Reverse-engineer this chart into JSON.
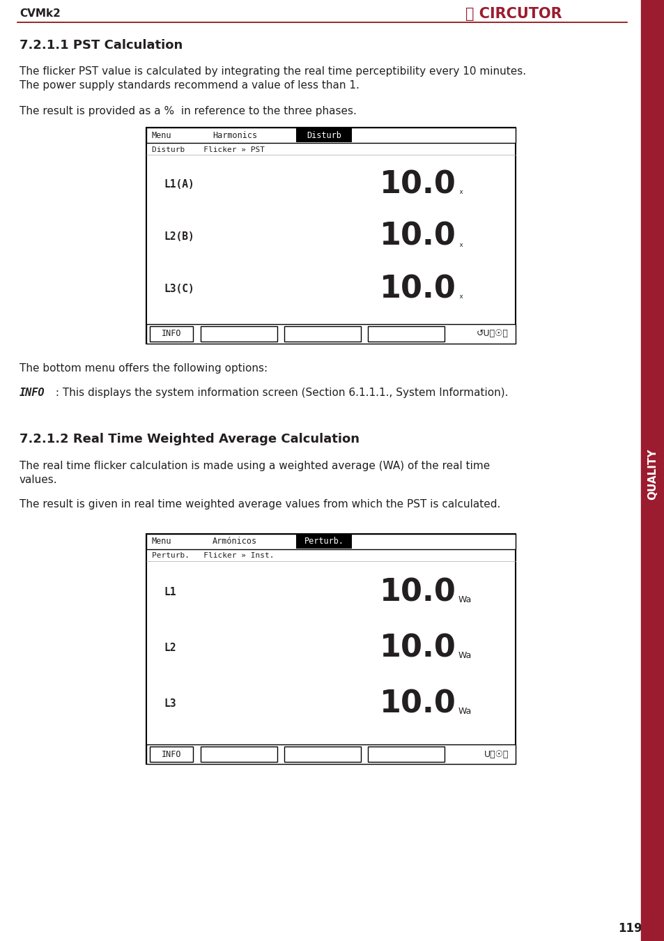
{
  "page_header_left": "CVMk2",
  "page_number": "119",
  "red_color": "#9B1C2E",
  "section1_title": "7.2.1.1 PST Calculation",
  "section1_para1": "The flicker PST value is calculated by integrating the real time perceptibility every 10 minutes.\nThe power supply standards recommend a value of less than 1.",
  "section1_para2": "The result is provided as a %  in reference to the three phases.",
  "screen1_menu_left": "Menu",
  "screen1_menu_mid": "Harmonics",
  "screen1_menu_highlight": "Disturb",
  "screen1_submenu": "Disturb    Flicker » PST",
  "screen1_labels": [
    "L1(A)",
    "L2(B)",
    "L3(C)"
  ],
  "screen1_values": [
    "10.0",
    "10.0",
    "10.0"
  ],
  "screen1_unit": "ₓ",
  "screen1_info_btn": "INFO",
  "section1_para3": "The bottom menu offers the following options:",
  "info_label": "INFO",
  "info_rest": " : This displays the system information screen (Section 6.1.1.1., System Information).",
  "section2_title": "7.2.1.2 Real Time Weighted Average Calculation",
  "section2_para1a": "The real time flicker calculation is made using a weighted average (WA) of the real time",
  "section2_para1b": "values.",
  "section2_para2": "The result is given in real time weighted average values from which the PST is calculated.",
  "screen2_menu_left": "Menu",
  "screen2_menu_mid": "Armónicos",
  "screen2_menu_highlight": "Perturb.",
  "screen2_submenu": "Perturb.   Flicker » Inst.",
  "screen2_labels": [
    "L1",
    "L2",
    "L3"
  ],
  "screen2_values": [
    "10.0",
    "10.0",
    "10.0"
  ],
  "screen2_unit": "Wa",
  "screen2_info_btn": "INFO",
  "bg_color": "#ffffff",
  "text_color": "#231f20",
  "screen_bg": "#f8f8f8",
  "screen_border": "#000000",
  "highlight_tab_bg": "#000000",
  "highlight_tab_fg": "#ffffff",
  "sidebar_color": "#9B1C2E",
  "sidebar_text": "QUALITY",
  "header_line_color": "#8B0000",
  "circutor_color": "#9B1C2E",
  "mono_font": "DejaVu Sans Mono",
  "sans_font": "DejaVu Sans"
}
